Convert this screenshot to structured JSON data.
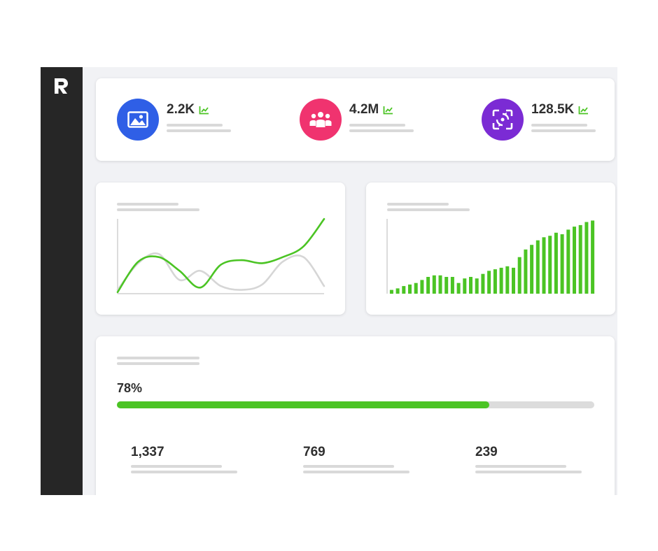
{
  "brand": {
    "logo_letter": "R"
  },
  "colors": {
    "sidebar": "#262626",
    "accent_green": "#4bc424",
    "stat_blue": "#2f5fe6",
    "stat_pink": "#f0336f",
    "stat_purple": "#7b2bd4",
    "gray_series": "#d6d6d6"
  },
  "stats": [
    {
      "value": "2.2K",
      "icon": "image-icon",
      "trend_icon": "trend-up-icon"
    },
    {
      "value": "4.2M",
      "icon": "people-icon",
      "trend_icon": "trend-up-icon"
    },
    {
      "value": "128.5K",
      "icon": "focus-icon",
      "trend_icon": "trend-up-icon"
    }
  ],
  "progress": {
    "label": "78%",
    "value": 0.78
  },
  "totals": [
    "1,337",
    "769",
    "239"
  ],
  "chart_data": [
    {
      "type": "line",
      "x": [
        0,
        1,
        2,
        3,
        4,
        5,
        6,
        7,
        8,
        9,
        10
      ],
      "series": [
        {
          "color": "#4bc424",
          "values": [
            2,
            42,
            48,
            30,
            8,
            38,
            44,
            40,
            48,
            62,
            98
          ]
        },
        {
          "color": "#d6d6d6",
          "values": [
            5,
            40,
            52,
            18,
            30,
            10,
            5,
            12,
            42,
            48,
            10
          ]
        }
      ],
      "ylim": [
        0,
        100
      ]
    },
    {
      "type": "bar",
      "values": [
        5,
        7,
        10,
        12,
        14,
        18,
        22,
        24,
        24,
        22,
        22,
        14,
        20,
        22,
        20,
        26,
        30,
        32,
        34,
        36,
        34,
        48,
        58,
        64,
        70,
        74,
        76,
        80,
        78,
        84,
        88,
        90,
        94,
        96
      ],
      "color": "#4bc424",
      "ylim": [
        0,
        100
      ]
    }
  ]
}
